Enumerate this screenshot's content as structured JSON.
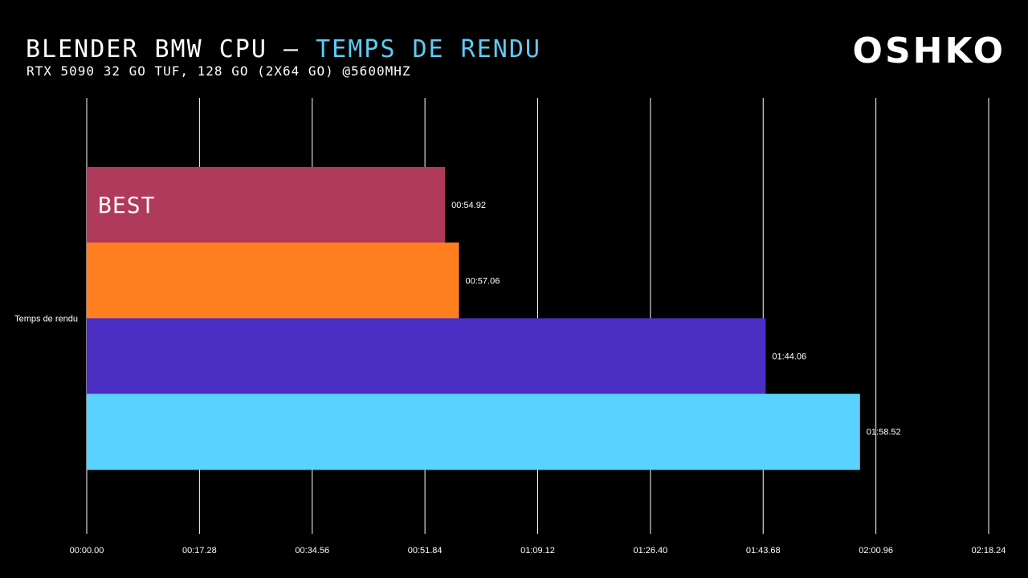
{
  "header": {
    "title_main": "BLENDER BMW CPU – ",
    "title_accent": "TEMPS DE RENDU",
    "subtitle": "RTX 5090 32 GO TUF, 128 GO (2X64 GO) @5600MHZ",
    "logo": "OSHKO"
  },
  "colors": {
    "background": "#000000",
    "title_accent": "#5ecbf5",
    "gridline": "#ffffff"
  },
  "chart_data": {
    "type": "bar",
    "orientation": "horizontal",
    "categories": [
      "Temps de rendu"
    ],
    "x_ticks": [
      "00:00.00",
      "00:17.28",
      "00:34.56",
      "00:51.84",
      "01:09.12",
      "01:26.40",
      "01:43.68",
      "02:00.96",
      "02:18.24"
    ],
    "xlim_seconds": [
      0,
      138.24
    ],
    "grid": true,
    "legend": "none",
    "series": [
      {
        "value_seconds": 54.92,
        "value_label": "00:54.92",
        "color": "#b03a5b",
        "annotation": "BEST"
      },
      {
        "value_seconds": 57.06,
        "value_label": "00:57.06",
        "color": "#ff7f1f"
      },
      {
        "value_seconds": 104.06,
        "value_label": "01:44.06",
        "color": "#4b2ec4"
      },
      {
        "value_seconds": 118.52,
        "value_label": "01:58.52",
        "color": "#5ad2ff"
      }
    ]
  }
}
